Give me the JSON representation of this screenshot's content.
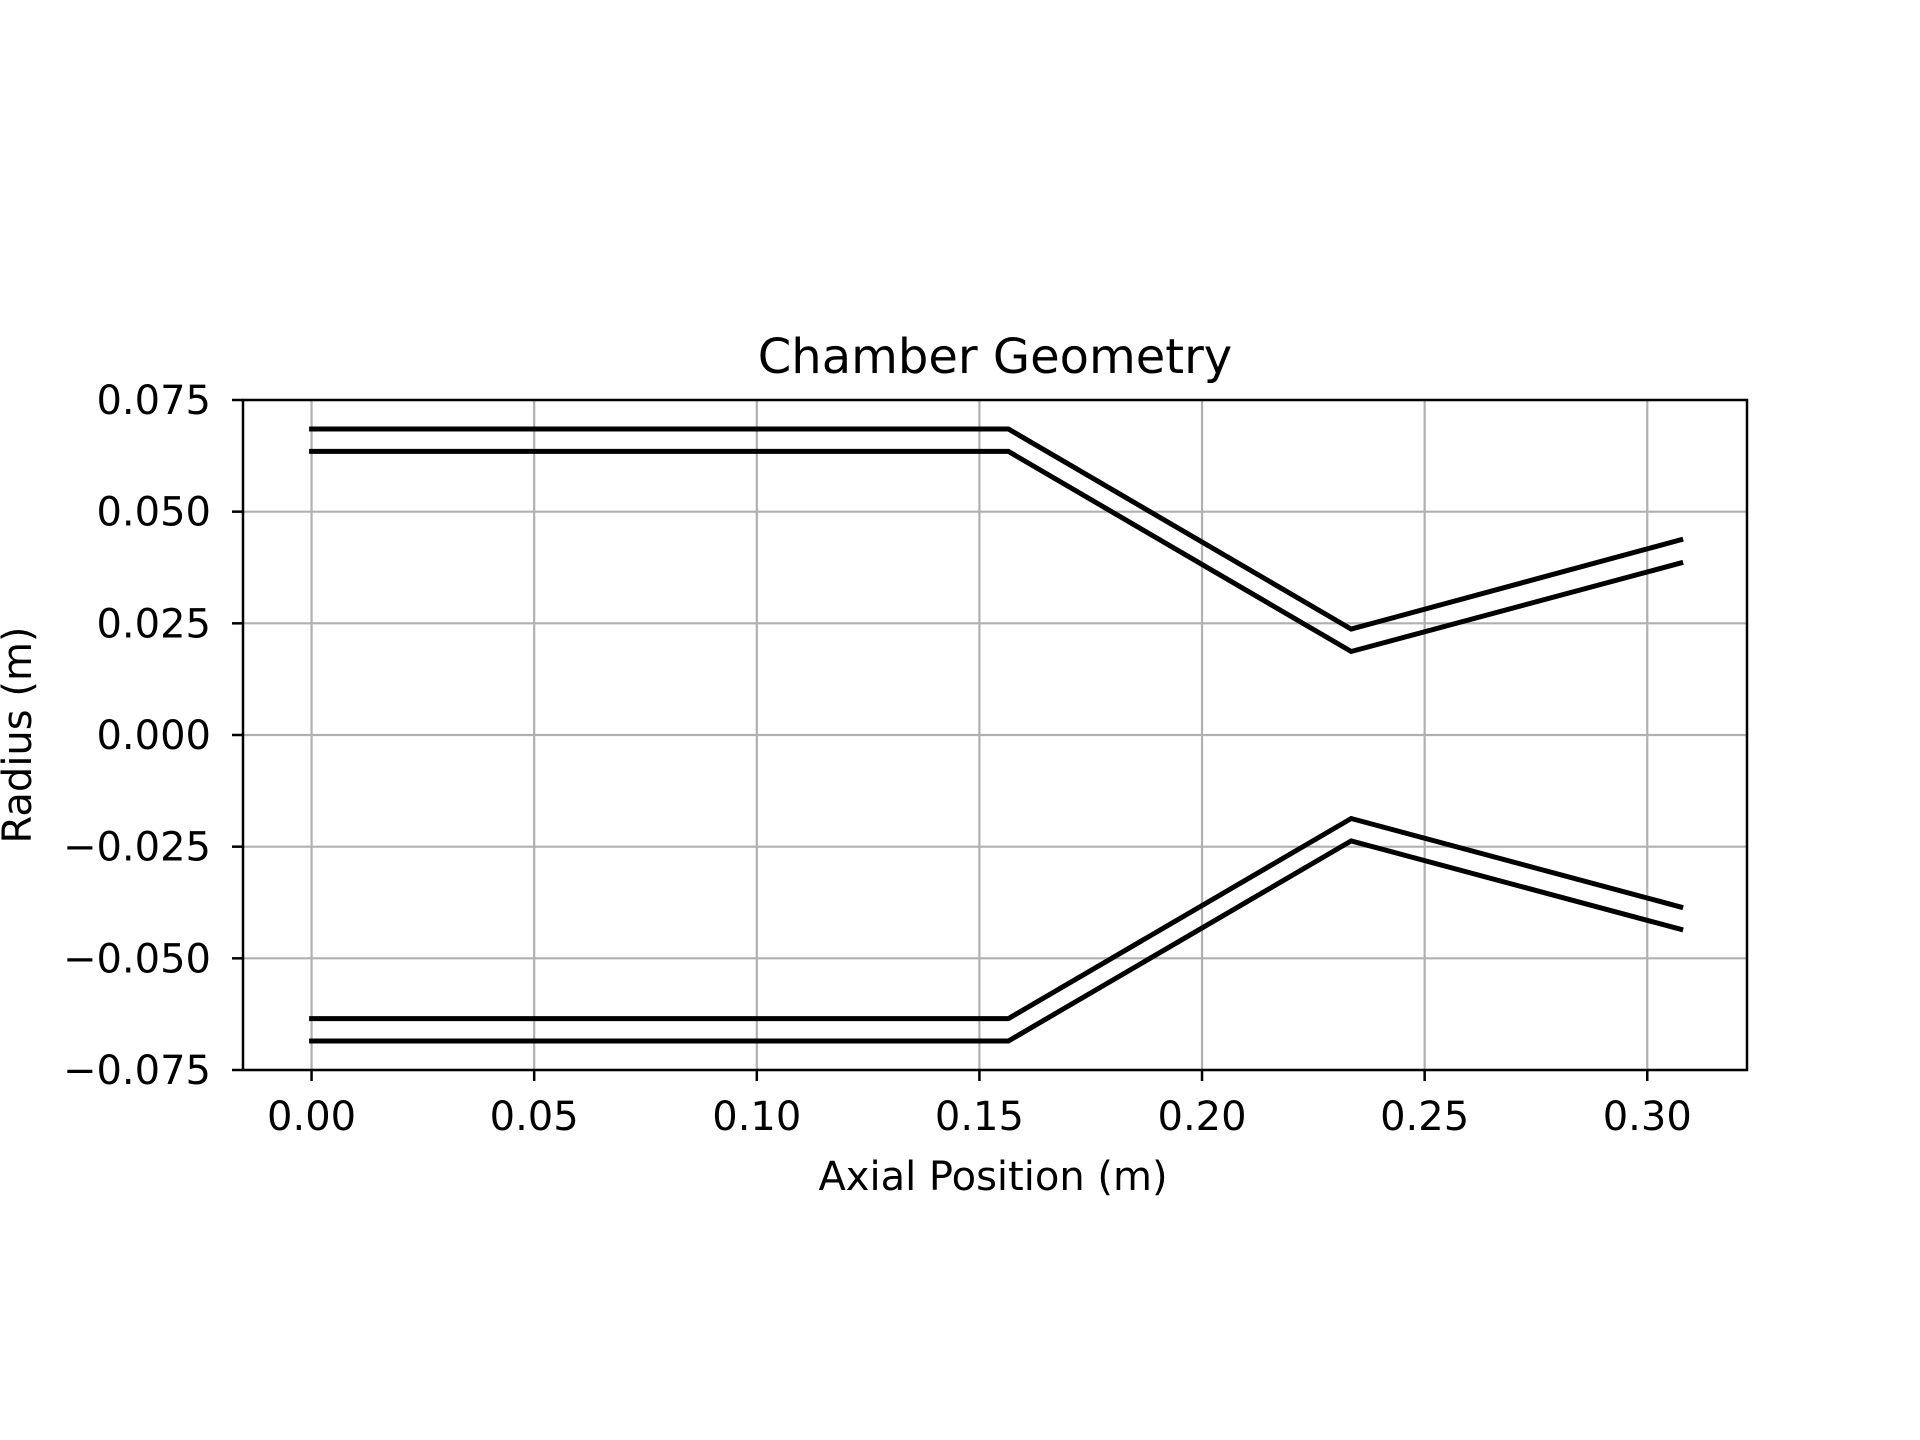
{
  "chart_data": {
    "type": "line",
    "title": "Chamber Geometry",
    "xlabel": "Axial Position (m)",
    "ylabel": "Radius (m)",
    "xlim": [
      -0.0154,
      0.3224
    ],
    "ylim": [
      -0.075,
      0.075
    ],
    "xticks": [
      "0.00",
      "0.05",
      "0.10",
      "0.15",
      "0.20",
      "0.25",
      "0.30"
    ],
    "yticks": [
      "0.075",
      "0.050",
      "0.025",
      "0.000",
      "−0.025",
      "−0.050",
      "−0.075"
    ],
    "grid": true,
    "legend": false,
    "colors": {
      "line": "#000000",
      "grid": "#b0b0b0",
      "axes": "#000000",
      "background": "#ffffff"
    },
    "series": [
      {
        "x": [
          0.0,
          0.1565,
          0.2335,
          0.3075
        ],
        "y": [
          0.0685,
          0.0685,
          0.0237,
          0.0437
        ]
      },
      {
        "x": [
          0.0,
          0.1565,
          0.2335,
          0.3075
        ],
        "y": [
          0.0635,
          0.0635,
          0.0187,
          0.0385
        ]
      },
      {
        "x": [
          0.0,
          0.1565,
          0.2335,
          0.3075
        ],
        "y": [
          -0.0635,
          -0.0635,
          -0.0187,
          -0.0385
        ]
      },
      {
        "x": [
          0.0,
          0.1565,
          0.2335,
          0.3075
        ],
        "y": [
          -0.0685,
          -0.0685,
          -0.0237,
          -0.0435
        ]
      }
    ]
  }
}
